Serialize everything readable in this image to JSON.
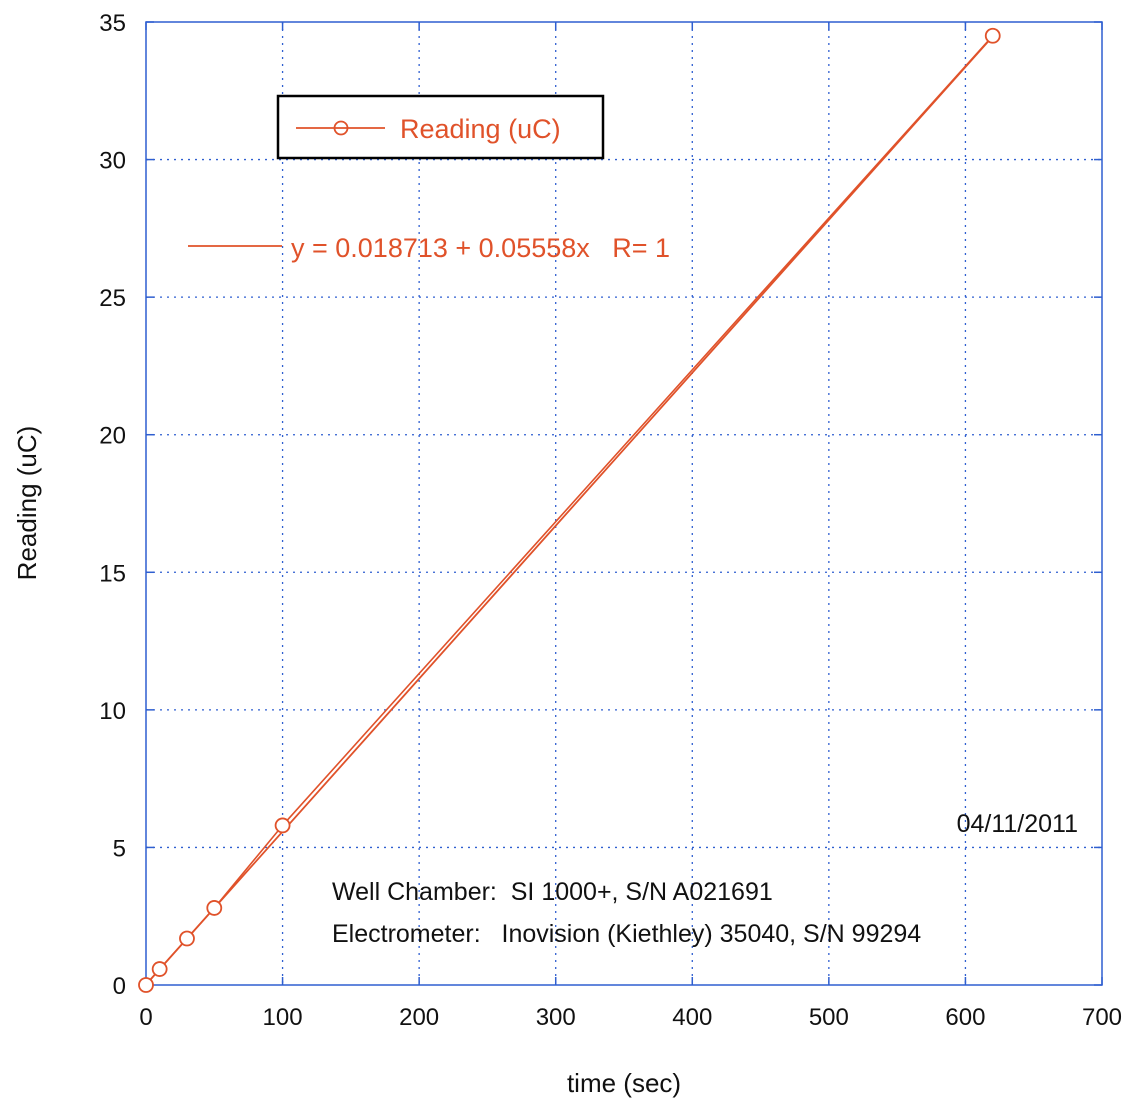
{
  "chart_data": {
    "type": "line",
    "xlabel": "time (sec)",
    "ylabel": "Reading (uC)",
    "xlim": [
      0,
      700
    ],
    "ylim": [
      0,
      35
    ],
    "x_ticks": [
      0,
      100,
      200,
      300,
      400,
      500,
      600,
      700
    ],
    "y_ticks": [
      0,
      5,
      10,
      15,
      20,
      25,
      30,
      35
    ],
    "x_tick_labels": [
      "0",
      "100",
      "200",
      "300",
      "400",
      "500",
      "600",
      "700"
    ],
    "y_tick_labels": [
      "0",
      "5",
      "10",
      "15",
      "20",
      "25",
      "30",
      "35"
    ],
    "grid": true,
    "series": [
      {
        "name": "Reading (uC)",
        "marker": "circle",
        "x": [
          0,
          10,
          30,
          50,
          100,
          620
        ],
        "y": [
          0.0,
          0.58,
          1.69,
          2.8,
          5.8,
          34.5
        ]
      }
    ],
    "fit": {
      "label": "y = 0.018713 + 0.05558x   R= 1",
      "intercept": 0.018713,
      "slope": 0.05558,
      "x_range": [
        0,
        620
      ]
    },
    "legend": {
      "position": "top-left"
    },
    "annotations": {
      "date": "04/11/2011",
      "chamber": "Well Chamber:  SI 1000+, S/N A021691",
      "electrometer": "Electrometer:   Inovision (Kiethley) 35040, S/N 99294"
    },
    "colors": {
      "series": "#e0522a",
      "axes": "#2f5fd0",
      "grid": "#2f5fd0",
      "text": "#111111",
      "legend_border": "#000000"
    }
  }
}
